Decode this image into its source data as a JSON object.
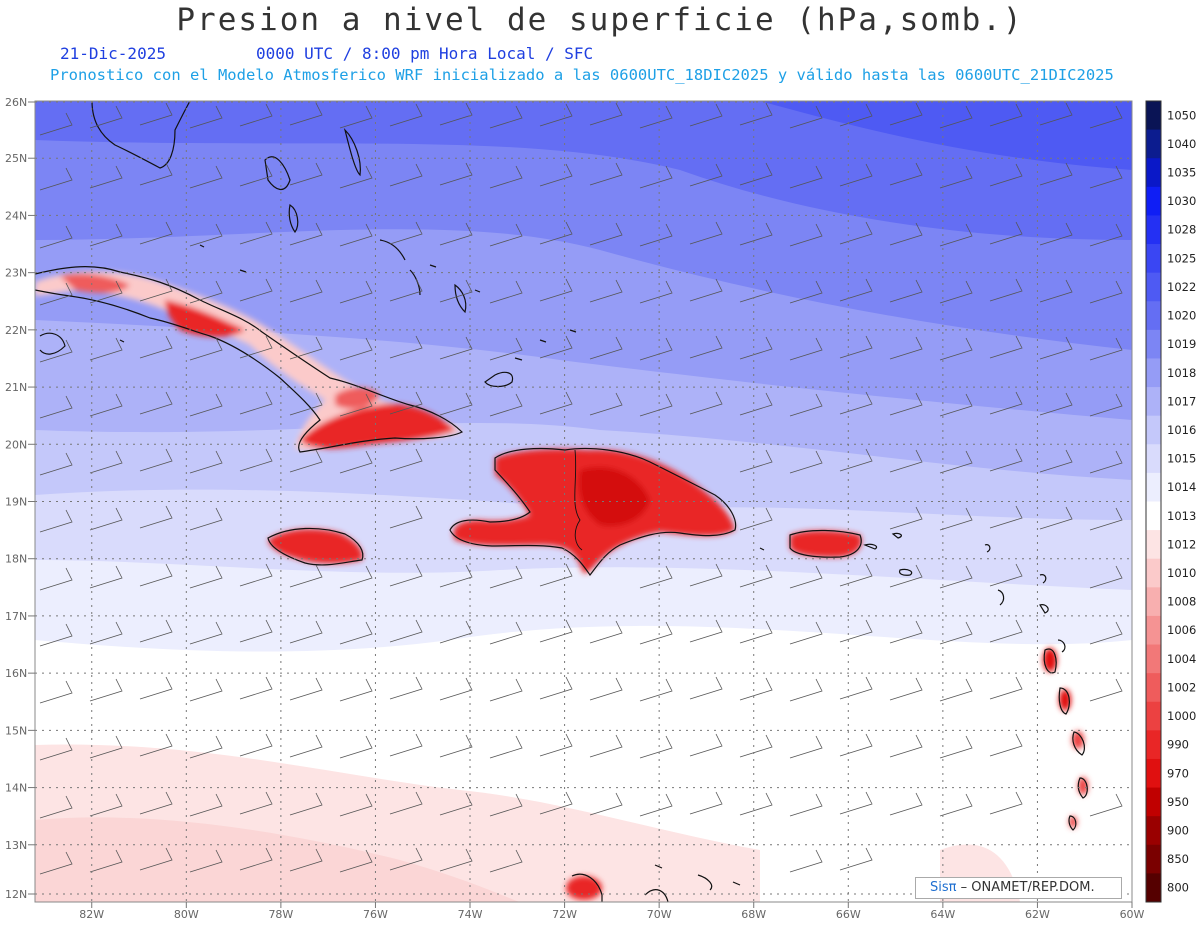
{
  "header": {
    "title": "Presion a nivel de superficie (hPa,somb.)",
    "date": "21-Dic-2025",
    "time": "0000 UTC / 8:00 pm Hora Local / SFC",
    "info": "Pronostico con el Modelo Atmosferico WRF inicializado a las 0600UTC_18DIC2025 y válido hasta las  0600UTC_21DIC2025"
  },
  "map": {
    "lat_labels": [
      "26N",
      "25N",
      "24N",
      "23N",
      "22N",
      "21N",
      "20N",
      "19N",
      "18N",
      "17N",
      "16N",
      "15N",
      "14N",
      "13N",
      "12N"
    ],
    "lon_labels": [
      "82W",
      "80W",
      "78W",
      "76W",
      "74W",
      "72W",
      "70W",
      "68W",
      "66W",
      "64W",
      "62W",
      "60W"
    ],
    "lat_range": [
      12,
      26
    ],
    "lon_range": [
      -83.2,
      -60
    ]
  },
  "colorbar": {
    "levels": [
      "1050",
      "1040",
      "1035",
      "1030",
      "1028",
      "1025",
      "1022",
      "1020",
      "1019",
      "1018",
      "1017",
      "1016",
      "1015",
      "1014",
      "1013",
      "1012",
      "1010",
      "1008",
      "1006",
      "1004",
      "1002",
      "1000",
      "990",
      "970",
      "950",
      "900",
      "850",
      "800"
    ],
    "colors": [
      "#0a1455",
      "#0c1c8f",
      "#0a18c8",
      "#0f1ef5",
      "#2430f3",
      "#3a46f3",
      "#4e5af3",
      "#646ef3",
      "#7c85f4",
      "#959cf6",
      "#adb2f8",
      "#c4c8fa",
      "#d9dbfc",
      "#eceefe",
      "#ffffff",
      "#fde4e4",
      "#fbcaca",
      "#f8afaf",
      "#f59393",
      "#f27878",
      "#ef5c5c",
      "#ec4141",
      "#e92626",
      "#e01010",
      "#c00000",
      "#9a0000",
      "#7a0000",
      "#550000"
    ]
  },
  "credit": {
    "sis": "Sisπ",
    "text": " – ONAMET/REP.DOM."
  }
}
